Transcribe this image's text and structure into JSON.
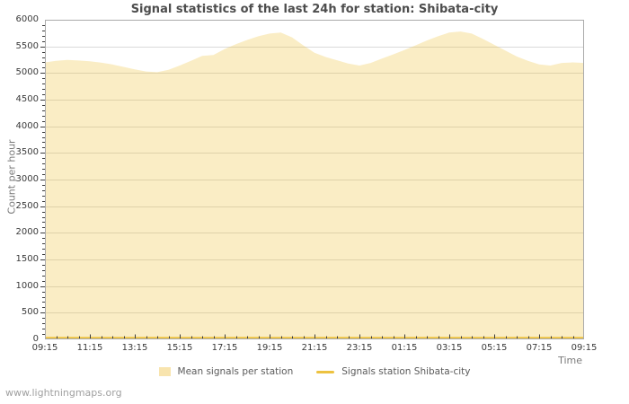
{
  "page": {
    "title": "Signal statistics of the last 24h for station: Shibata-city",
    "watermark": "www.lightningmaps.org"
  },
  "colors": {
    "series_yellow": "#EDC240",
    "area_fill": "rgba(237,194,64,0.30)",
    "legend_area_swatch": "#F8E4AE",
    "gridline": "#D9D9D9",
    "plot_border": "#ABABAB",
    "tick": "#3C3C3C",
    "title_text": "#4D4D4D",
    "tick_label_text": "#3A3A3A",
    "axis_title_text": "#7A7A7A",
    "legend_text": "#5A5A5A",
    "watermark_text": "#A0A0A0",
    "background": "#FFFFFF"
  },
  "chart_data": {
    "type": "area",
    "title": "Signal statistics of the last 24h for station: Shibata-city",
    "xlabel": "Time",
    "ylabel": "Count per hour",
    "ylim": [
      0,
      6000
    ],
    "y_major_step": 500,
    "y_minor_step": 100,
    "y_tick_labels": [
      "0",
      "500",
      "1000",
      "1500",
      "2000",
      "2500",
      "3000",
      "3500",
      "4000",
      "4500",
      "5000",
      "5500",
      "6000"
    ],
    "x_hours_span": 24,
    "x_minor_step_hours": 0.5,
    "x_major_step_hours": 2,
    "x_major_tick_labels": [
      "09:15",
      "11:15",
      "13:15",
      "15:15",
      "17:15",
      "19:15",
      "21:15",
      "23:15",
      "01:15",
      "03:15",
      "05:15",
      "07:15",
      "09:15"
    ],
    "grid": true,
    "legend_position": "bottom-center",
    "x": [
      "09:15",
      "09:45",
      "10:15",
      "10:45",
      "11:15",
      "11:45",
      "12:15",
      "12:45",
      "13:15",
      "13:45",
      "14:15",
      "14:45",
      "15:15",
      "15:45",
      "16:15",
      "16:45",
      "17:15",
      "17:45",
      "18:15",
      "18:45",
      "19:15",
      "19:45",
      "20:15",
      "20:45",
      "21:15",
      "21:45",
      "22:15",
      "22:45",
      "23:15",
      "23:45",
      "00:15",
      "00:45",
      "01:15",
      "01:45",
      "02:15",
      "02:45",
      "03:15",
      "03:45",
      "04:15",
      "04:45",
      "05:15",
      "05:45",
      "06:15",
      "06:45",
      "07:15",
      "07:45",
      "08:15",
      "08:45",
      "09:15"
    ],
    "series": [
      {
        "name": "Mean signals per station",
        "style": "area",
        "values": [
          5200,
          5230,
          5245,
          5235,
          5220,
          5195,
          5160,
          5115,
          5070,
          5030,
          5015,
          5060,
          5140,
          5230,
          5320,
          5340,
          5450,
          5540,
          5620,
          5690,
          5740,
          5760,
          5670,
          5520,
          5380,
          5300,
          5240,
          5180,
          5140,
          5190,
          5270,
          5350,
          5430,
          5520,
          5610,
          5690,
          5760,
          5780,
          5740,
          5640,
          5530,
          5420,
          5310,
          5230,
          5160,
          5140,
          5190,
          5200,
          5190
        ]
      },
      {
        "name": "Signals station Shibata-city",
        "style": "line",
        "values_constant": 0
      }
    ]
  }
}
